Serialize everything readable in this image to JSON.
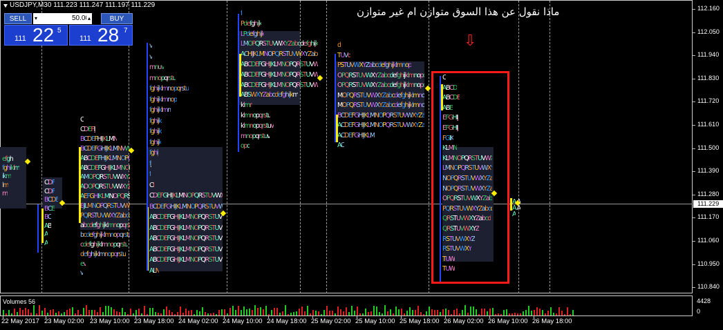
{
  "chart": {
    "symbol": "USDJPY,M30",
    "ohlc": "111.223 111.247 111.197 111.229",
    "annotation": "ماذا نقول عن هذا السوق متوازن ام غير متوازن",
    "current_price": "111.229",
    "price_labels": [
      "112.160",
      "112.050",
      "111.940",
      "111.830",
      "111.720",
      "111.610",
      "111.500",
      "111.390",
      "111.280",
      "111.170",
      "111.060",
      "110.950",
      "110.840"
    ],
    "time_labels": [
      "22 May 2017",
      "23 May 02:00",
      "23 May 10:00",
      "23 May 18:00",
      "24 May 02:00",
      "24 May 10:00",
      "24 May 18:00",
      "25 May 02:00",
      "25 May 10:00",
      "25 May 18:00",
      "26 May 02:00",
      "26 May 10:00",
      "26 May 18:00"
    ]
  },
  "trade_panel": {
    "sell_label": "SELL",
    "buy_label": "BUY",
    "lot_value": "50.00",
    "sell_small": "111",
    "sell_big": "22",
    "sell_sup": "5",
    "buy_small": "111",
    "buy_big": "28",
    "buy_sup": "7"
  },
  "volume": {
    "label": "Volumes 56",
    "max_label": "4428",
    "zero_label": "0"
  },
  "profile": {
    "p1": [
      "efghi",
      "fghiklm",
      "ikm",
      "lm",
      "m"
    ],
    "p2": [
      "CDF",
      "CDF",
      "BCDE",
      "BCE",
      "BC",
      "AB",
      "A",
      "A"
    ],
    "p3": [
      "C",
      "CDEFIJ",
      "BCDEFHIJKLMN",
      "BCDEFGHIJKLMNVWX",
      "ABCDEFHIJKLMNOPQRSTUV",
      "ABCDEFGHIJKLMNOPQRSTUVWXYZ",
      "AMOPQRSTUVWXYZab",
      "ADOPQRSTUVWXYZabcdefghijk",
      "AEFGHIKLMNOPQRSTUVWXYZabcdefghij",
      "BJLMNOPQRSTUVWXYZabcdefghijklm",
      "PQRSTUVWXYZabcdefghijklmnopqrst",
      "abcdefghijklmnopqrstu",
      "bcdefghijklmnopqrstu",
      "cdefghijklmnopqrstu",
      "defghijklmnopqrstu",
      "ev",
      "v"
    ],
    "p4": [
      "v",
      "v",
      "mnuv",
      "mnopqrstu",
      "fghijklmnopqrstu",
      "fghijklmnop",
      "fghijklmn",
      "fghijkl",
      "fghijkl",
      "fghijk",
      "fghij",
      "fj",
      "f",
      "Cf",
      "CDEFGHIJKLMNOPQRSTUVWXYZabcdef",
      "BCDEFGHIJKLMNOPQRSTUVWXYZabcdef",
      "ABCDEFGHIJKLMNOPQRSTUVWXYZabcdef",
      "ABCDEFGHIJKLMNOPQRSTUVWXYZabcde",
      "ABCDEFGHIJKLMNOPQRSTUVWXYZabcd",
      "ABCDEFGHIJKLMNOPQRSTUVWXYZ",
      "ABCDEFGHIJKLMNOPQRSTUVW",
      "ALN"
    ],
    "p5": [
      "f",
      "Pdefghijk",
      "LPdefghijk",
      "LMOPQRSTUVWXYZabcdefghijk",
      "ACHIJKLMNOPQRSTUVWXYZabcdefghijk",
      "ABCDEFGHIJKLMNOPQRSTUVWXYZabcdefghijk",
      "ABCDEFGHIJKLMNOPQRSTUVWXYZabcdefghijk",
      "ABCDEFGHIJKLMNOPQRSTUVWXYZabcdefghijk",
      "ABSWXYZabcdefghijkm",
      "klmn",
      "klmnopqrstu",
      "klmnopqrstuv",
      "mnopqrstuv",
      "opq"
    ],
    "p6": [
      "d",
      "TUVd",
      "PSTUVWXYZabcdefghijklmnop",
      "OPQRSTUVWXYZabcdefghijklmnopqrstuvw",
      "OPQRSTUVWXYZabcdefghijklmnopqrstuvw",
      "MOPQRSTUVWXYZabcdefghijklmnopqrstuv",
      "MOPQRSTUVWXYZabcdefghijklmnopqrstuv",
      "BCDEFGHIJKLMNOPQRSTUVWXYZabcdefg",
      "ACDEFGHIJKLMNOPQRSTUVWXYZabcdef",
      "ACDEFGHIJKLM",
      "AC"
    ],
    "p7": [
      "C",
      "ABCD",
      "ABCDE",
      "ABE",
      "EFGHIJ",
      "EFGHIJ",
      "FGIK",
      "KLMN",
      "KLMNOPQRSTUVWXYZabcdefgh",
      "LMNOPQRSTUVWXYZabcdefghij",
      "NOPQRSTUVWXYZabcdefghijklmnop",
      "NOPQRSTUVWXYZabcdefghijklmnopq",
      "OPQRSTUVWXYZabcdefghijklmn",
      "PQRSTUVWXYZabcdefghijklm",
      "QRSTUVWXYZabcd",
      "QRSTUVWXYZ",
      "RSTUVWXYZ",
      "RSTUVWXY",
      "TUW",
      "TUW"
    ],
    "p8": [
      "A A",
      "A A",
      "A"
    ]
  }
}
